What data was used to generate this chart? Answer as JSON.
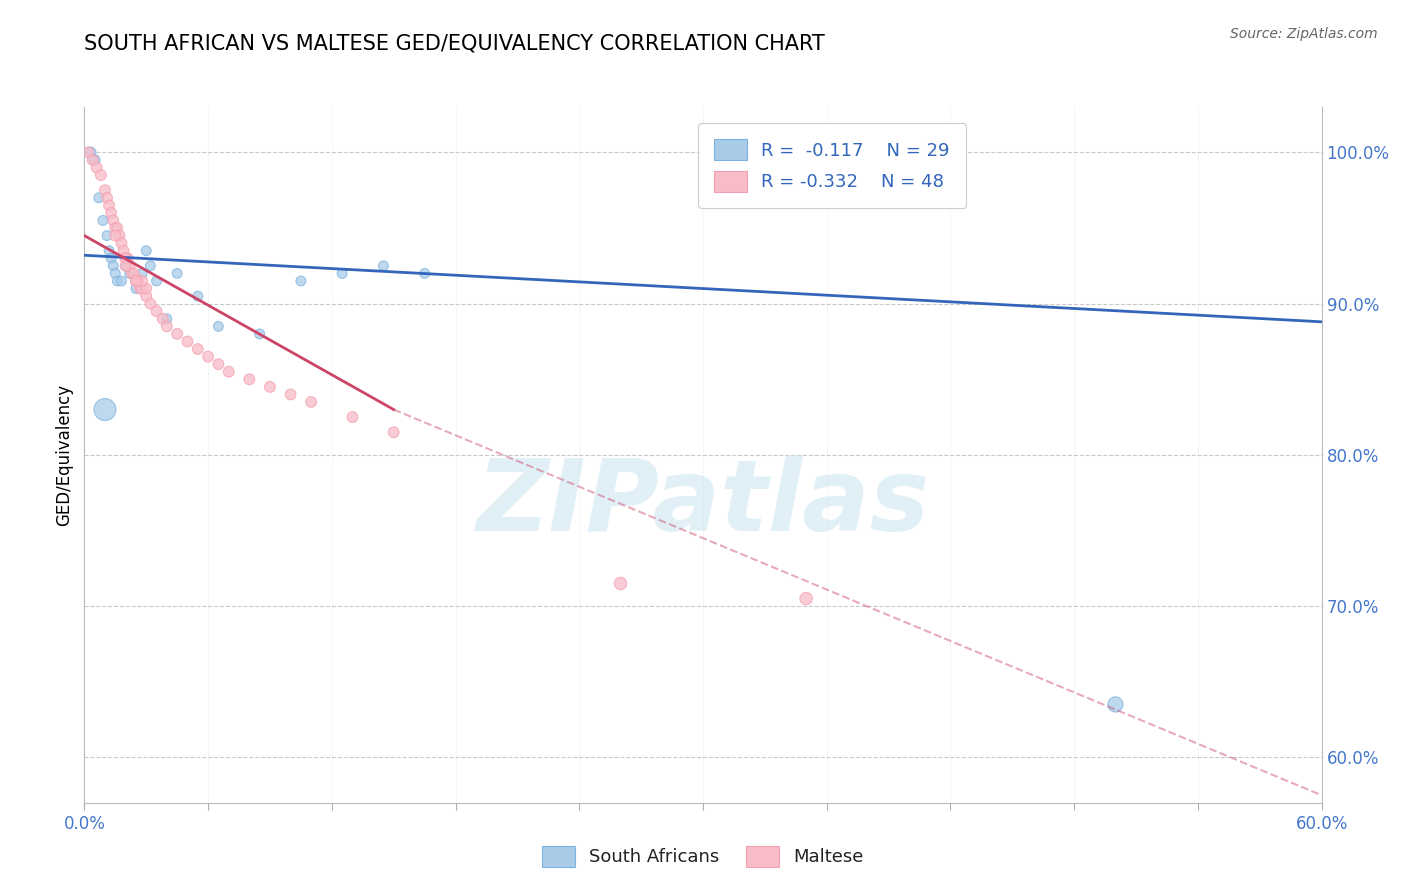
{
  "title": "SOUTH AFRICAN VS MALTESE GED/EQUIVALENCY CORRELATION CHART",
  "source": "Source: ZipAtlas.com",
  "ylabel": "GED/Equivalency",
  "right_yticks": [
    60.0,
    70.0,
    80.0,
    90.0,
    100.0
  ],
  "legend_r1": "R =  -0.117",
  "legend_n1": "N = 29",
  "legend_r2": "R = -0.332",
  "legend_n2": "N = 48",
  "blue_color": "#7EB3E0",
  "pink_color": "#F4A0B0",
  "blue_fill": "#A8CCE8",
  "pink_fill": "#F8BCC8",
  "blue_line_color": "#3366BB",
  "pink_line_color": "#CC4466",
  "watermark_text": "ZIPatlas",
  "xlim": [
    0,
    60
  ],
  "ylim": [
    57,
    103
  ],
  "south_africans_x": [
    0.3,
    0.5,
    0.7,
    0.9,
    1.1,
    1.2,
    1.3,
    1.4,
    1.5,
    1.6,
    1.8,
    2.0,
    2.2,
    2.5,
    2.8,
    3.0,
    3.2,
    3.5,
    4.0,
    4.5,
    5.5,
    6.5,
    8.5,
    10.5,
    12.5,
    14.5,
    16.5,
    50.0,
    1.0
  ],
  "south_africans_y": [
    100.0,
    99.5,
    97.0,
    95.5,
    94.5,
    93.5,
    93.0,
    92.5,
    92.0,
    91.5,
    91.5,
    92.5,
    92.0,
    91.0,
    92.0,
    93.5,
    92.5,
    91.5,
    89.0,
    92.0,
    90.5,
    88.5,
    88.0,
    91.5,
    92.0,
    92.5,
    92.0,
    63.5,
    83.0
  ],
  "south_africans_s": [
    60,
    60,
    50,
    50,
    50,
    50,
    50,
    50,
    50,
    50,
    50,
    50,
    50,
    50,
    50,
    50,
    50,
    50,
    50,
    50,
    50,
    50,
    50,
    50,
    50,
    50,
    50,
    120,
    250
  ],
  "maltese_x": [
    0.2,
    0.4,
    0.6,
    0.8,
    1.0,
    1.1,
    1.2,
    1.3,
    1.4,
    1.5,
    1.6,
    1.7,
    1.8,
    1.9,
    2.0,
    2.1,
    2.2,
    2.3,
    2.4,
    2.5,
    2.6,
    2.7,
    2.8,
    3.0,
    3.2,
    3.5,
    3.8,
    4.0,
    4.5,
    5.0,
    5.5,
    6.0,
    6.5,
    7.0,
    8.0,
    9.0,
    10.0,
    11.0,
    13.0,
    15.0,
    26.0,
    35.0,
    3.0,
    2.0,
    1.5,
    2.8,
    2.0,
    2.5
  ],
  "maltese_y": [
    100.0,
    99.5,
    99.0,
    98.5,
    97.5,
    97.0,
    96.5,
    96.0,
    95.5,
    95.0,
    95.0,
    94.5,
    94.0,
    93.5,
    93.0,
    93.0,
    92.5,
    92.0,
    92.0,
    91.5,
    91.5,
    91.0,
    91.0,
    90.5,
    90.0,
    89.5,
    89.0,
    88.5,
    88.0,
    87.5,
    87.0,
    86.5,
    86.0,
    85.5,
    85.0,
    84.5,
    84.0,
    83.5,
    82.5,
    81.5,
    71.5,
    70.5,
    91.0,
    93.0,
    94.5,
    91.5,
    92.5,
    91.5
  ],
  "maltese_s": [
    60,
    60,
    60,
    60,
    60,
    60,
    60,
    60,
    60,
    60,
    60,
    60,
    60,
    60,
    60,
    60,
    60,
    60,
    60,
    60,
    60,
    60,
    60,
    60,
    60,
    60,
    60,
    60,
    60,
    60,
    60,
    60,
    60,
    60,
    60,
    60,
    60,
    60,
    60,
    60,
    80,
    80,
    60,
    60,
    60,
    60,
    60,
    60
  ],
  "blue_line_x0": 0,
  "blue_line_y0": 93.2,
  "blue_line_x1": 60,
  "blue_line_y1": 88.8,
  "pink_solid_x0": 0,
  "pink_solid_y0": 94.5,
  "pink_solid_x1": 15,
  "pink_solid_y1": 83.0,
  "pink_dash_x0": 15,
  "pink_dash_y0": 83.0,
  "pink_dash_x1": 60,
  "pink_dash_y1": 57.5
}
